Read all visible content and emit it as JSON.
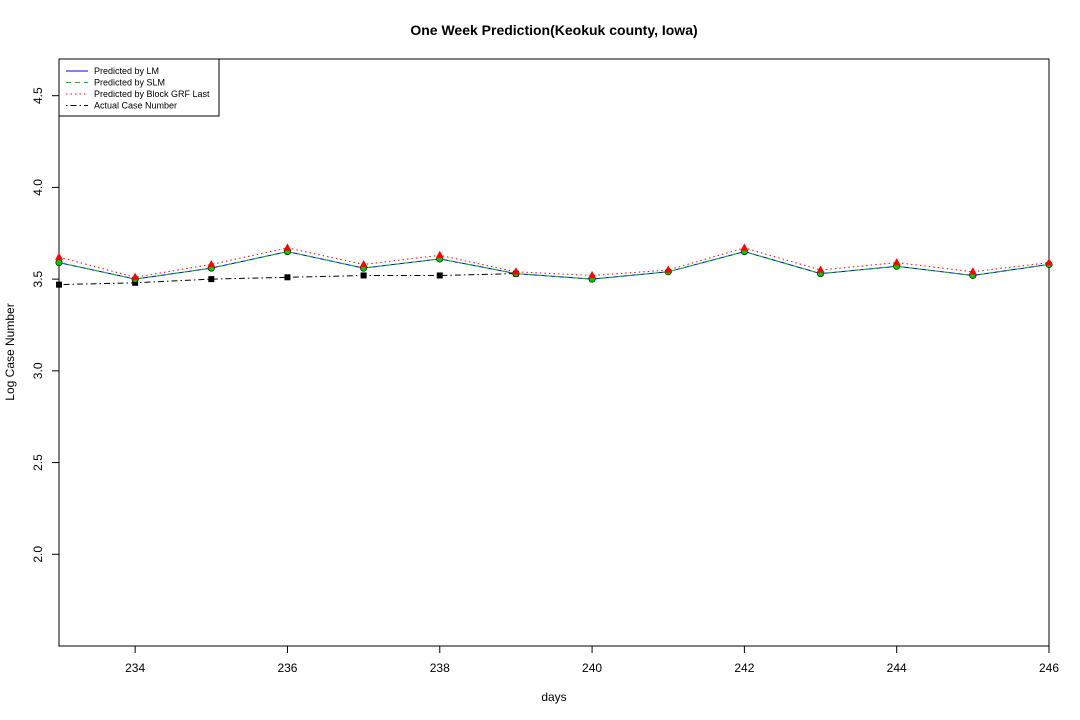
{
  "chart_data": {
    "type": "line",
    "title": "One Week Prediction(Keokuk county, Iowa)",
    "xlabel": "days",
    "ylabel": "Log Case Number",
    "xlim": [
      233,
      246
    ],
    "ylim": [
      1.5,
      4.7
    ],
    "xticks": [
      234,
      236,
      238,
      240,
      242,
      244,
      246
    ],
    "xtick_labels": [
      "234",
      "236",
      "238",
      "240",
      "242",
      "244",
      "246"
    ],
    "yticks": [
      2.0,
      2.5,
      3.0,
      3.5,
      4.0,
      4.5
    ],
    "ytick_labels": [
      "2.0",
      "2.5",
      "3.0",
      "3.5",
      "4.0",
      "4.5"
    ],
    "legend_position": "top-left",
    "series": [
      {
        "name": "Predicted by LM",
        "color": "#0000ff",
        "line": "solid",
        "marker": "none",
        "x": [
          233,
          234,
          235,
          236,
          237,
          238,
          239,
          240,
          241,
          242,
          243,
          244,
          245,
          246
        ],
        "values": [
          3.59,
          3.5,
          3.56,
          3.65,
          3.56,
          3.61,
          3.53,
          3.5,
          3.54,
          3.65,
          3.53,
          3.57,
          3.52,
          3.58
        ]
      },
      {
        "name": "Predicted by SLM",
        "color": "#00cd00",
        "line": "dashed",
        "marker": "circle",
        "x": [
          233,
          234,
          235,
          236,
          237,
          238,
          239,
          240,
          241,
          242,
          243,
          244,
          245,
          246
        ],
        "values": [
          3.59,
          3.5,
          3.56,
          3.65,
          3.56,
          3.61,
          3.53,
          3.5,
          3.54,
          3.65,
          3.53,
          3.57,
          3.52,
          3.58
        ]
      },
      {
        "name": "Predicted by Block GRF Last",
        "color": "#ff0000",
        "line": "dotted",
        "marker": "triangle",
        "x": [
          233,
          234,
          235,
          236,
          237,
          238,
          239,
          240,
          241,
          242,
          243,
          244,
          245,
          246
        ],
        "values": [
          3.62,
          3.51,
          3.58,
          3.67,
          3.58,
          3.63,
          3.54,
          3.52,
          3.55,
          3.67,
          3.55,
          3.59,
          3.54,
          3.59
        ]
      },
      {
        "name": "Actual Case Number",
        "color": "#000000",
        "line": "dotdash",
        "marker": "square",
        "x": [
          233,
          234,
          235,
          236,
          237,
          238,
          239
        ],
        "values": [
          3.47,
          3.48,
          3.5,
          3.51,
          3.52,
          3.52,
          3.53
        ]
      }
    ]
  }
}
